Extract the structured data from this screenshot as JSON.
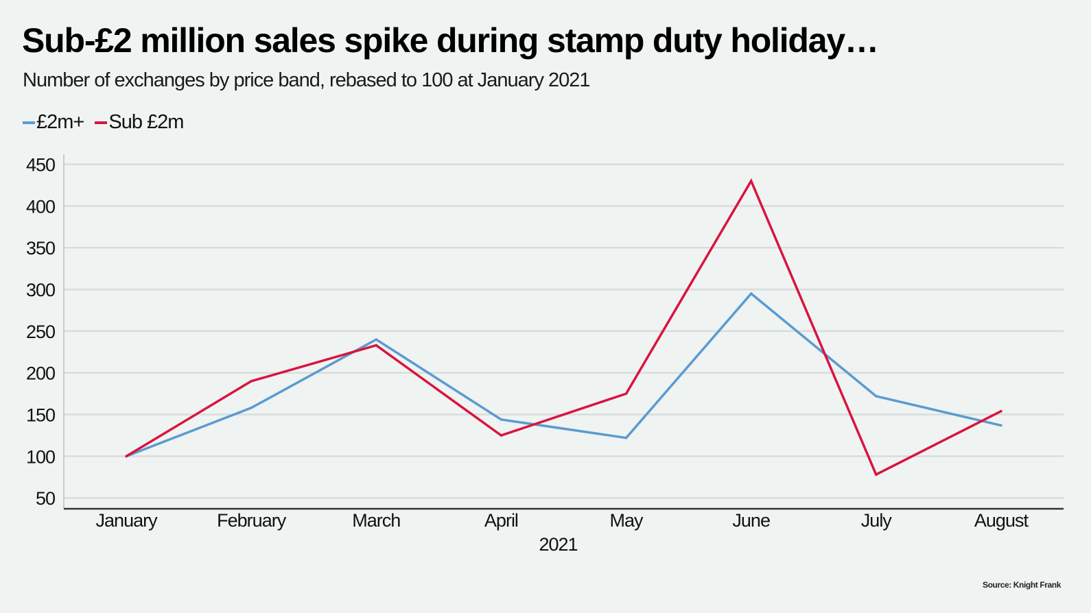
{
  "header": {
    "title": "Sub-£2 million sales spike during stamp duty holiday…",
    "subtitle": "Number of exchanges by price band, rebased to 100 at January 2021"
  },
  "source": "Source: Knight Frank",
  "chart_data": {
    "type": "line",
    "title": "Sub-£2 million sales spike during stamp duty holiday…",
    "subtitle": "Number of exchanges by price band, rebased to 100 at January 2021",
    "xlabel": "2021",
    "ylabel": "",
    "categories": [
      "January",
      "February",
      "March",
      "April",
      "May",
      "June",
      "July",
      "August"
    ],
    "series": [
      {
        "name": "£2m+",
        "color": "#5b9bd0",
        "values": [
          100,
          158,
          240,
          144,
          122,
          295,
          172,
          137
        ]
      },
      {
        "name": "Sub £2m",
        "color": "#d9143f",
        "values": [
          100,
          190,
          233,
          125,
          175,
          430,
          78,
          154
        ]
      }
    ],
    "ylim": [
      37,
      462
    ],
    "yticks": [
      50,
      100,
      150,
      200,
      250,
      300,
      350,
      400,
      450
    ],
    "grid": true,
    "legend": "top-left",
    "source": "Source: Knight Frank"
  }
}
